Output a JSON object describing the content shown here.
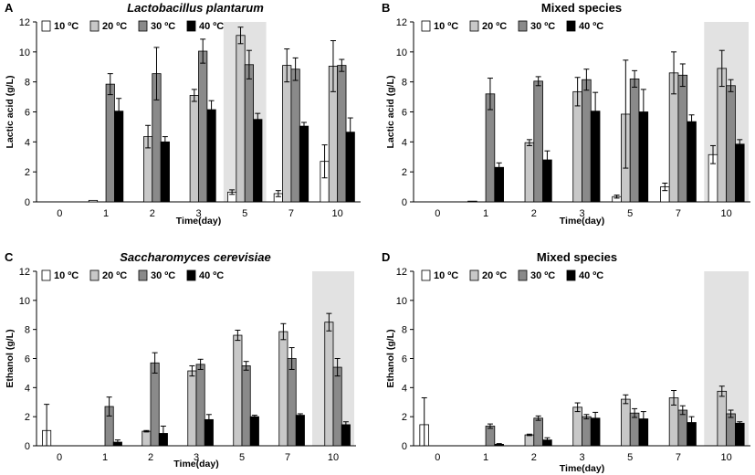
{
  "figure_colors": {
    "10 ºC": "#ffffff",
    "20 ºC": "#c8c8c8",
    "30 ºC": "#8a8a8a",
    "40 ºC": "#000000",
    "highlight": "#e2e2e2"
  },
  "chart_data": [
    {
      "panel": "A",
      "type": "bar",
      "title": "Lactobacillus plantarum",
      "title_style": "italic",
      "xlabel": "Time(day)",
      "ylabel": "Lactic acid (g/L)",
      "categories": [
        "0",
        "1",
        "2",
        "3",
        "5",
        "7",
        "10"
      ],
      "ylim": [
        0,
        12
      ],
      "yticks": [
        0,
        2,
        4,
        6,
        8,
        10,
        12
      ],
      "highlight_category": "5",
      "legend_position": "top-left",
      "series": [
        {
          "name": "10 ºC",
          "values": [
            0,
            0.1,
            0,
            0,
            0.65,
            0.55,
            2.7
          ],
          "errors": [
            0,
            0,
            0,
            0,
            0.15,
            0.2,
            1.1
          ]
        },
        {
          "name": "20 ºC",
          "values": [
            0,
            0,
            4.35,
            7.1,
            11.1,
            9.1,
            9.05
          ],
          "errors": [
            0,
            0,
            0.75,
            0.4,
            0.55,
            1.1,
            1.7
          ]
        },
        {
          "name": "30 ºC",
          "values": [
            0,
            7.85,
            8.55,
            10.05,
            9.15,
            8.85,
            9.1
          ],
          "errors": [
            0,
            0.7,
            1.75,
            0.8,
            0.95,
            0.75,
            0.4
          ]
        },
        {
          "name": "40 ºC",
          "values": [
            0,
            6.05,
            4.0,
            6.15,
            5.5,
            5.05,
            4.65
          ],
          "errors": [
            0,
            0.85,
            0.35,
            0.6,
            0.4,
            0.25,
            0.95
          ]
        }
      ]
    },
    {
      "panel": "B",
      "type": "bar",
      "title": "Mixed species",
      "title_style": "normal",
      "xlabel": "Time(day)",
      "ylabel": "Lactic acid (g/L)",
      "categories": [
        "0",
        "1",
        "2",
        "3",
        "5",
        "7",
        "10"
      ],
      "ylim": [
        0,
        12
      ],
      "yticks": [
        0,
        2,
        4,
        6,
        8,
        10,
        12
      ],
      "highlight_category": "10",
      "legend_position": "top-left",
      "series": [
        {
          "name": "10 ºC",
          "values": [
            0,
            0.05,
            0,
            0,
            0.35,
            1.0,
            3.15
          ],
          "errors": [
            0,
            0,
            0,
            0,
            0.1,
            0.25,
            0.6
          ]
        },
        {
          "name": "20 ºC",
          "values": [
            0,
            0,
            3.95,
            7.35,
            5.85,
            8.6,
            8.9
          ],
          "errors": [
            0,
            0,
            0.2,
            0.95,
            3.6,
            1.4,
            1.2
          ]
        },
        {
          "name": "30 ºC",
          "values": [
            0,
            7.2,
            8.05,
            8.15,
            8.2,
            8.45,
            7.75
          ],
          "errors": [
            0,
            1.05,
            0.3,
            0.7,
            0.55,
            0.75,
            0.4
          ]
        },
        {
          "name": "40 ºC",
          "values": [
            0,
            2.3,
            2.8,
            6.05,
            6.0,
            5.35,
            3.85
          ],
          "errors": [
            0,
            0.3,
            0.6,
            1.25,
            1.5,
            0.45,
            0.3
          ]
        }
      ]
    },
    {
      "panel": "C",
      "type": "bar",
      "title": "Saccharomyces cerevisiae",
      "title_style": "italic",
      "xlabel": "Time(day)",
      "ylabel": "Ethanol (g/L)",
      "categories": [
        "0",
        "1",
        "2",
        "3",
        "5",
        "7",
        "10"
      ],
      "ylim": [
        0,
        12
      ],
      "yticks": [
        0,
        2,
        4,
        6,
        8,
        10,
        12
      ],
      "highlight_category": "10",
      "legend_position": "top-left",
      "series": [
        {
          "name": "10 ºC",
          "values": [
            1.05,
            0,
            0,
            0,
            0,
            0,
            0
          ],
          "errors": [
            1.8,
            0,
            0,
            0,
            0,
            0,
            0
          ]
        },
        {
          "name": "20 ºC",
          "values": [
            0,
            0,
            1.0,
            5.15,
            7.6,
            7.85,
            8.5
          ],
          "errors": [
            0,
            0,
            0.05,
            0.35,
            0.35,
            0.55,
            0.6
          ]
        },
        {
          "name": "30 ºC",
          "values": [
            0,
            2.7,
            5.7,
            5.6,
            5.5,
            6.0,
            5.4
          ],
          "errors": [
            0,
            0.65,
            0.7,
            0.35,
            0.3,
            0.75,
            0.6
          ]
        },
        {
          "name": "40 ºC",
          "values": [
            0,
            0.25,
            0.85,
            1.8,
            2.0,
            2.1,
            1.45
          ],
          "errors": [
            0,
            0.15,
            0.5,
            0.35,
            0.1,
            0.1,
            0.2
          ]
        }
      ]
    },
    {
      "panel": "D",
      "type": "bar",
      "title": "Mixed species",
      "title_style": "normal",
      "xlabel": "Time(day)",
      "ylabel": "Ethanol (g/L)",
      "categories": [
        "0",
        "1",
        "2",
        "3",
        "5",
        "7",
        "10"
      ],
      "ylim": [
        0,
        12
      ],
      "yticks": [
        0,
        2,
        4,
        6,
        8,
        10,
        12
      ],
      "highlight_category": "10",
      "legend_position": "top-left",
      "series": [
        {
          "name": "10 ºC",
          "values": [
            1.45,
            0,
            0,
            0,
            0,
            0,
            0
          ],
          "errors": [
            1.85,
            0,
            0,
            0,
            0,
            0,
            0
          ]
        },
        {
          "name": "20 ºC",
          "values": [
            0,
            0,
            0.75,
            2.65,
            3.2,
            3.3,
            3.75
          ],
          "errors": [
            0,
            0,
            0.05,
            0.3,
            0.3,
            0.5,
            0.35
          ]
        },
        {
          "name": "30 ºC",
          "values": [
            0,
            1.35,
            1.9,
            2.0,
            2.25,
            2.45,
            2.2
          ],
          "errors": [
            0,
            0.15,
            0.15,
            0.15,
            0.3,
            0.3,
            0.25
          ]
        },
        {
          "name": "40 ºC",
          "values": [
            0,
            0.1,
            0.4,
            1.9,
            1.85,
            1.6,
            1.55
          ],
          "errors": [
            0,
            0.05,
            0.15,
            0.4,
            0.5,
            0.4,
            0.1
          ]
        }
      ]
    }
  ]
}
